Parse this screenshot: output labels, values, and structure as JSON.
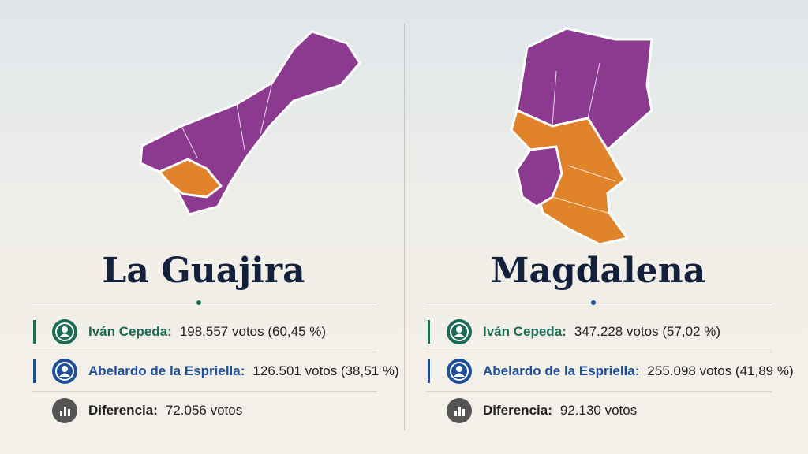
{
  "panels": [
    {
      "title": "La Guajira",
      "rows": [
        {
          "name": "Iván Cepeda:",
          "result": "198.557 votos (60,45 %)"
        },
        {
          "name": "Abelardo de la Espriella:",
          "result": "126.501 votos (38,51 %)"
        },
        {
          "name": "Diferencia:",
          "result": "72.056 votos"
        }
      ]
    },
    {
      "title": "Magdalena",
      "rows": [
        {
          "name": "Iván Cepeda:",
          "result": "347.228 votos (57,02 %)"
        },
        {
          "name": "Abelardo de la Espriella:",
          "result": "255.098 votos (41,89 %)"
        },
        {
          "name": "Diferencia:",
          "result": "92.130 votos"
        }
      ]
    }
  ]
}
